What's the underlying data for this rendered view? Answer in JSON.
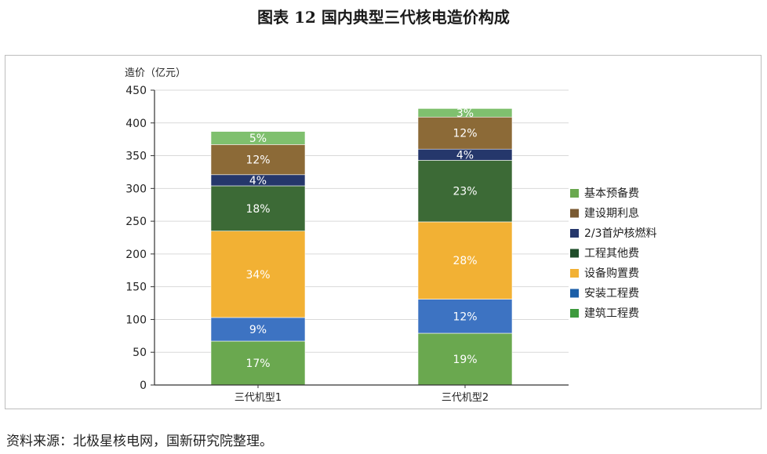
{
  "figure": {
    "title": "图表 12  国内典型三代核电造价构成",
    "source": "资料来源：北极星核电网，国新研究院整理。"
  },
  "chart_data": {
    "type": "bar",
    "stacked": true,
    "title": "",
    "ylabel": "造价（亿元）",
    "ylim": [
      0,
      450
    ],
    "yticks": [
      0,
      50,
      100,
      150,
      200,
      250,
      300,
      350,
      400,
      450
    ],
    "grid": true,
    "legend_position": "right",
    "categories": [
      "三代机型1",
      "三代机型2"
    ],
    "series": [
      {
        "name": "建筑工程费",
        "color": "#6aa84f",
        "values": [
          67,
          79
        ],
        "labels": [
          "17%",
          "19%"
        ]
      },
      {
        "name": "安装工程费",
        "color": "#3d73c2",
        "values": [
          36,
          52
        ],
        "labels": [
          "9%",
          "12%"
        ]
      },
      {
        "name": "设备购置费",
        "color": "#f2b134",
        "values": [
          132,
          118
        ],
        "labels": [
          "34%",
          "28%"
        ]
      },
      {
        "name": "工程其他费",
        "color": "#3c6a36",
        "values": [
          69,
          94
        ],
        "labels": [
          "18%",
          "23%"
        ]
      },
      {
        "name": "2/3首炉核燃料",
        "color": "#25376b",
        "values": [
          17,
          17
        ],
        "labels": [
          "4%",
          "4%"
        ]
      },
      {
        "name": "建设期利息",
        "color": "#8c6a37",
        "values": [
          46,
          49
        ],
        "labels": [
          "12%",
          "12%"
        ]
      },
      {
        "name": "基本预备费",
        "color": "#7fc06e",
        "values": [
          20,
          13
        ],
        "labels": [
          "5%",
          "3%"
        ]
      }
    ],
    "legend": [
      {
        "name": "基本预备费",
        "color": "#6aa84f"
      },
      {
        "name": "建设期利息",
        "color": "#7a5a32"
      },
      {
        "name": "2/3首炉核燃料",
        "color": "#25376b"
      },
      {
        "name": "工程其他费",
        "color": "#1f4d2a"
      },
      {
        "name": "设备购置费",
        "color": "#f2b134"
      },
      {
        "name": "安装工程费",
        "color": "#1c5fa8"
      },
      {
        "name": "建筑工程费",
        "color": "#3d9a3d"
      }
    ]
  }
}
